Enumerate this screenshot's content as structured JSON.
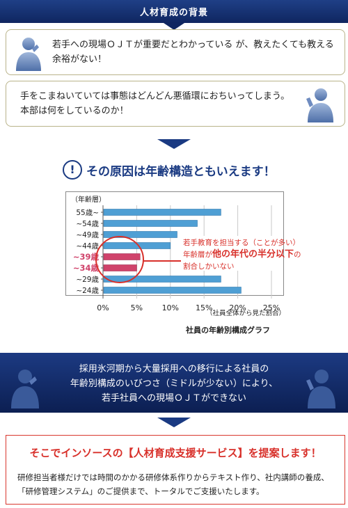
{
  "header": {
    "title": "人材育成の背景"
  },
  "bubbles": [
    {
      "text": "若手への現場ＯＪＴが重要だとわかっている が、教えたくても教える余裕がない！"
    },
    {
      "text": "手をこまねいていては事態はどんどん悪循環におちいってしまう。本部は何をしているのか！"
    }
  ],
  "cause": {
    "icon": "!",
    "title": "その原因は年齢構造ともいえます！"
  },
  "chart_data": {
    "type": "bar",
    "orientation": "horizontal",
    "ylabel": "（年齢層）",
    "categories": [
      "55歳~",
      "~54歳",
      "~49歳",
      "~44歳",
      "~39歳",
      "~34歳",
      "~29歳",
      "~24歳"
    ],
    "values": [
      17.5,
      14,
      11,
      10,
      5.5,
      5,
      17.5,
      20.5
    ],
    "highlighted": [
      "~39歳",
      "~34歳"
    ],
    "xlim": [
      0,
      25
    ],
    "xticks": [
      "0%",
      "5%",
      "10%",
      "15%",
      "20%",
      "25%"
    ],
    "xlabel": "（社員全体から見た割合）",
    "grid": true,
    "colors": {
      "bar": "#4f9fd4",
      "highlight": "#d0436b",
      "circle": "#d8302a"
    },
    "annotation": {
      "line1": "若手教育を担当する（ことが多い）",
      "line2_prefix": "年齢層が",
      "line2_emph": "他の年代の半分以下",
      "line2_suffix": "の",
      "line3": "割合しかいない"
    }
  },
  "chart_caption": "社員の年齢別構成グラフ",
  "banner": {
    "line1": "採用氷河期から大量採用への移行による社員の",
    "line2": "年齢別構成のいびつさ（ミドルが少ない）により、",
    "line3": "若手社員への現場ＯＪＴができない"
  },
  "proposal": {
    "title": "そこでインソースの【人材育成支援サービス】を提案します！",
    "body": "研修担当者様だけでは時間のかかる研修体系作りからテキスト作り、社内講師の養成、「研修管理システム」のご提供まで、トータルでご支援いたします。"
  }
}
